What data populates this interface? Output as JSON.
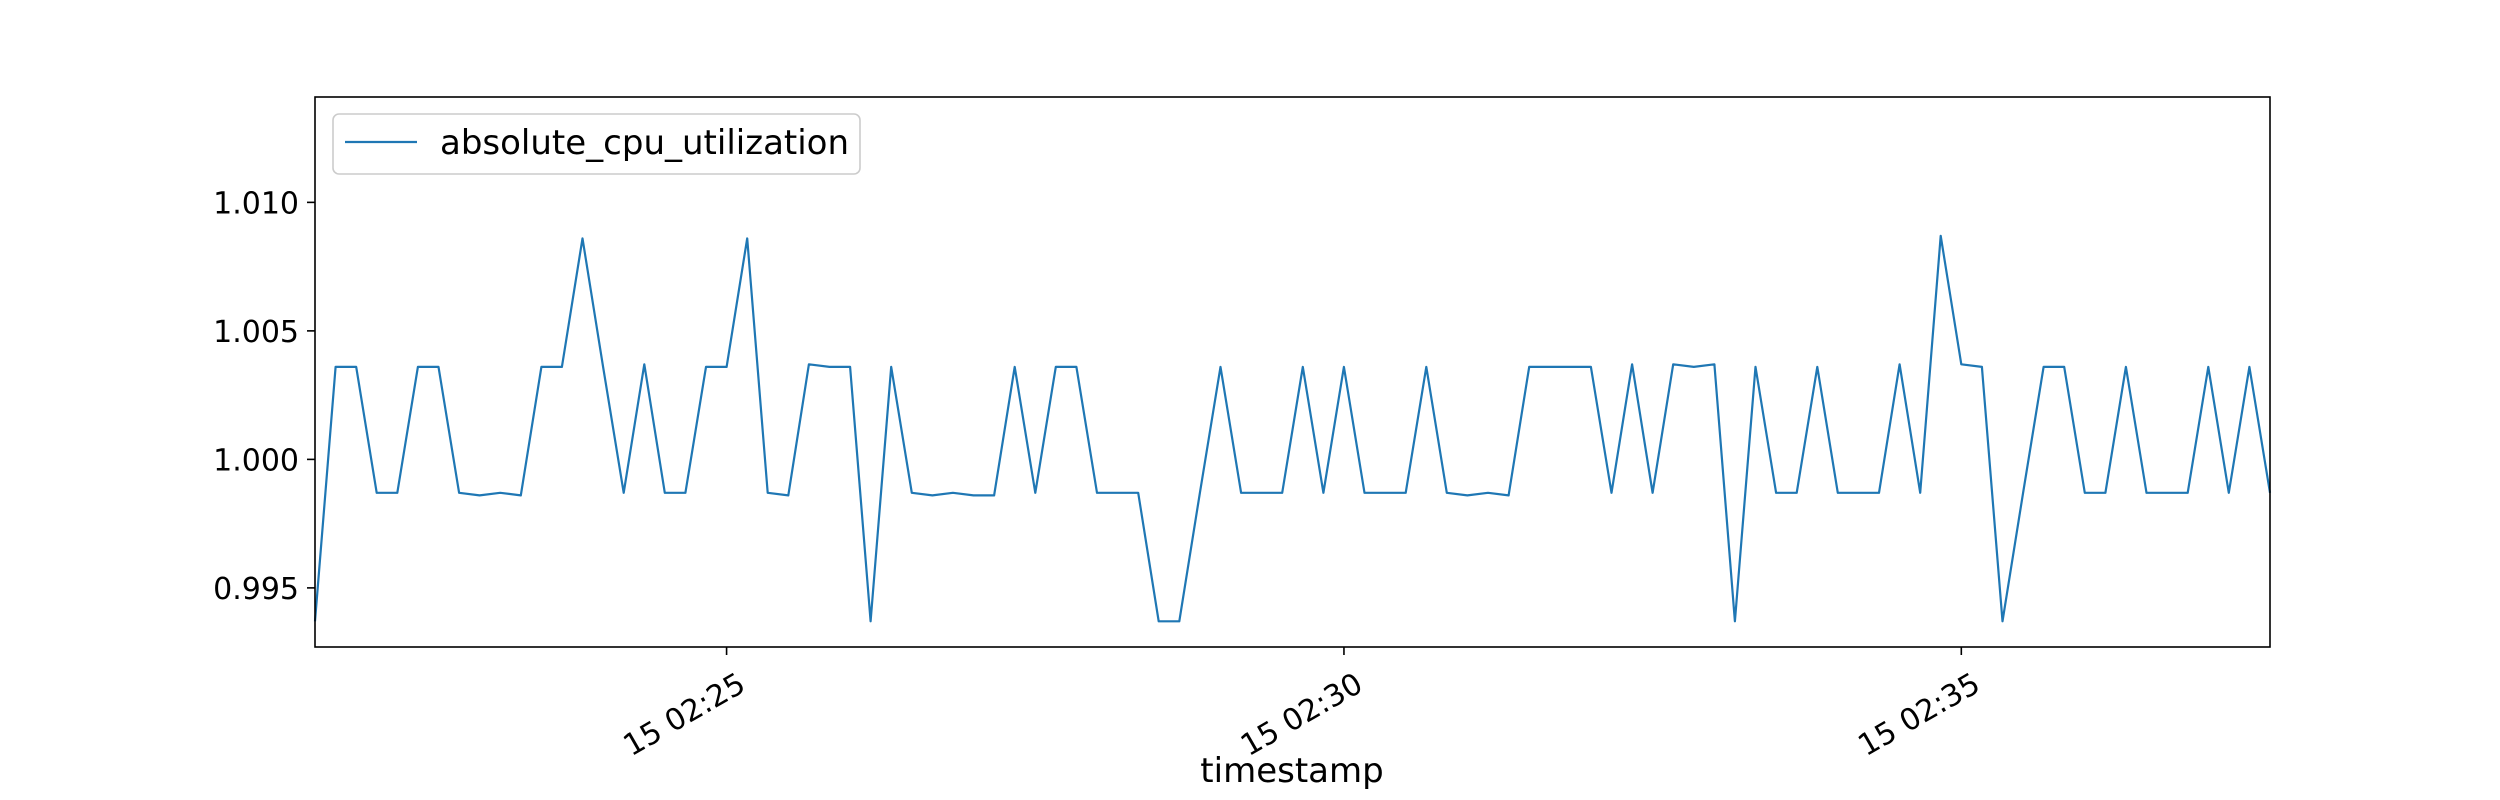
{
  "chart_data": {
    "type": "line",
    "title": "",
    "xlabel": "timestamp",
    "ylabel": "",
    "x_start": "15 02:21:40",
    "x_end": "15 02:37:30",
    "ylim": [
      0.9927,
      1.0141
    ],
    "xticks": [
      "15 02:25",
      "15 02:30",
      "15 02:35"
    ],
    "yticks": [
      "0.995",
      "1.000",
      "1.005",
      "1.010"
    ],
    "legend": {
      "position": "upper-left",
      "entries": [
        "absolute_cpu_utilization"
      ]
    },
    "grid": false,
    "series": [
      {
        "name": "absolute_cpu_utilization",
        "color": "#1f77b4",
        "x": [
          "15 02:21:40",
          "15 02:21:50",
          "15 02:22:00",
          "15 02:22:10",
          "15 02:22:20",
          "15 02:22:30",
          "15 02:22:40",
          "15 02:22:50",
          "15 02:23:00",
          "15 02:23:10",
          "15 02:23:20",
          "15 02:23:30",
          "15 02:23:40",
          "15 02:23:50",
          "15 02:24:00",
          "15 02:24:10",
          "15 02:24:20",
          "15 02:24:30",
          "15 02:24:40",
          "15 02:24:50",
          "15 02:25:00",
          "15 02:25:10",
          "15 02:25:20",
          "15 02:25:30",
          "15 02:25:40",
          "15 02:25:50",
          "15 02:26:00",
          "15 02:26:10",
          "15 02:26:20",
          "15 02:26:30",
          "15 02:26:40",
          "15 02:26:50",
          "15 02:27:00",
          "15 02:27:10",
          "15 02:27:20",
          "15 02:27:30",
          "15 02:27:40",
          "15 02:27:50",
          "15 02:28:00",
          "15 02:28:10",
          "15 02:28:20",
          "15 02:28:30",
          "15 02:28:40",
          "15 02:28:50",
          "15 02:29:00",
          "15 02:29:10",
          "15 02:29:20",
          "15 02:29:30",
          "15 02:29:40",
          "15 02:29:50",
          "15 02:30:00",
          "15 02:30:10",
          "15 02:30:20",
          "15 02:30:30",
          "15 02:30:40",
          "15 02:30:50",
          "15 02:31:00",
          "15 02:31:10",
          "15 02:31:20",
          "15 02:31:30",
          "15 02:31:40",
          "15 02:31:50",
          "15 02:32:00",
          "15 02:32:10",
          "15 02:32:20",
          "15 02:32:30",
          "15 02:32:40",
          "15 02:32:50",
          "15 02:33:00",
          "15 02:33:10",
          "15 02:33:20",
          "15 02:33:30",
          "15 02:33:40",
          "15 02:33:50",
          "15 02:34:00",
          "15 02:34:10",
          "15 02:34:20",
          "15 02:34:30",
          "15 02:34:40",
          "15 02:34:50",
          "15 02:35:00",
          "15 02:35:10",
          "15 02:35:20",
          "15 02:35:30",
          "15 02:35:40",
          "15 02:35:50",
          "15 02:36:00",
          "15 02:36:10",
          "15 02:36:20",
          "15 02:36:30",
          "15 02:36:40",
          "15 02:36:50",
          "15 02:37:00",
          "15 02:37:10",
          "15 02:37:20",
          "15 02:37:30"
        ],
        "values": [
          0.9937,
          1.0036,
          1.0036,
          0.9987,
          0.9987,
          1.0036,
          1.0036,
          0.9987,
          0.9986,
          0.9987,
          0.9986,
          1.0036,
          1.0036,
          1.0086,
          1.0036,
          0.9987,
          1.0037,
          0.9987,
          0.9987,
          1.0036,
          1.0036,
          1.0086,
          0.9987,
          0.9986,
          1.0037,
          1.0036,
          1.0036,
          0.9937,
          1.0036,
          0.9987,
          0.9986,
          0.9987,
          0.9986,
          0.9986,
          1.0036,
          0.9987,
          1.0036,
          1.0036,
          0.9987,
          0.9987,
          0.9987,
          0.9937,
          0.9937,
          0.9987,
          1.0036,
          0.9987,
          0.9987,
          0.9987,
          1.0036,
          0.9987,
          1.0036,
          0.9987,
          0.9987,
          0.9987,
          1.0036,
          0.9987,
          0.9986,
          0.9987,
          0.9986,
          1.0036,
          1.0036,
          1.0036,
          1.0036,
          0.9987,
          1.0037,
          0.9987,
          1.0037,
          1.0036,
          1.0037,
          0.9937,
          1.0036,
          0.9987,
          0.9987,
          1.0036,
          0.9987,
          0.9987,
          0.9987,
          1.0037,
          0.9987,
          1.0087,
          1.0037,
          1.0036,
          0.9937,
          0.9987,
          1.0036,
          1.0036,
          0.9987,
          0.9987,
          1.0036,
          0.9987,
          0.9987,
          0.9987,
          1.0036,
          0.9987,
          1.0036,
          0.9987
        ]
      }
    ]
  }
}
